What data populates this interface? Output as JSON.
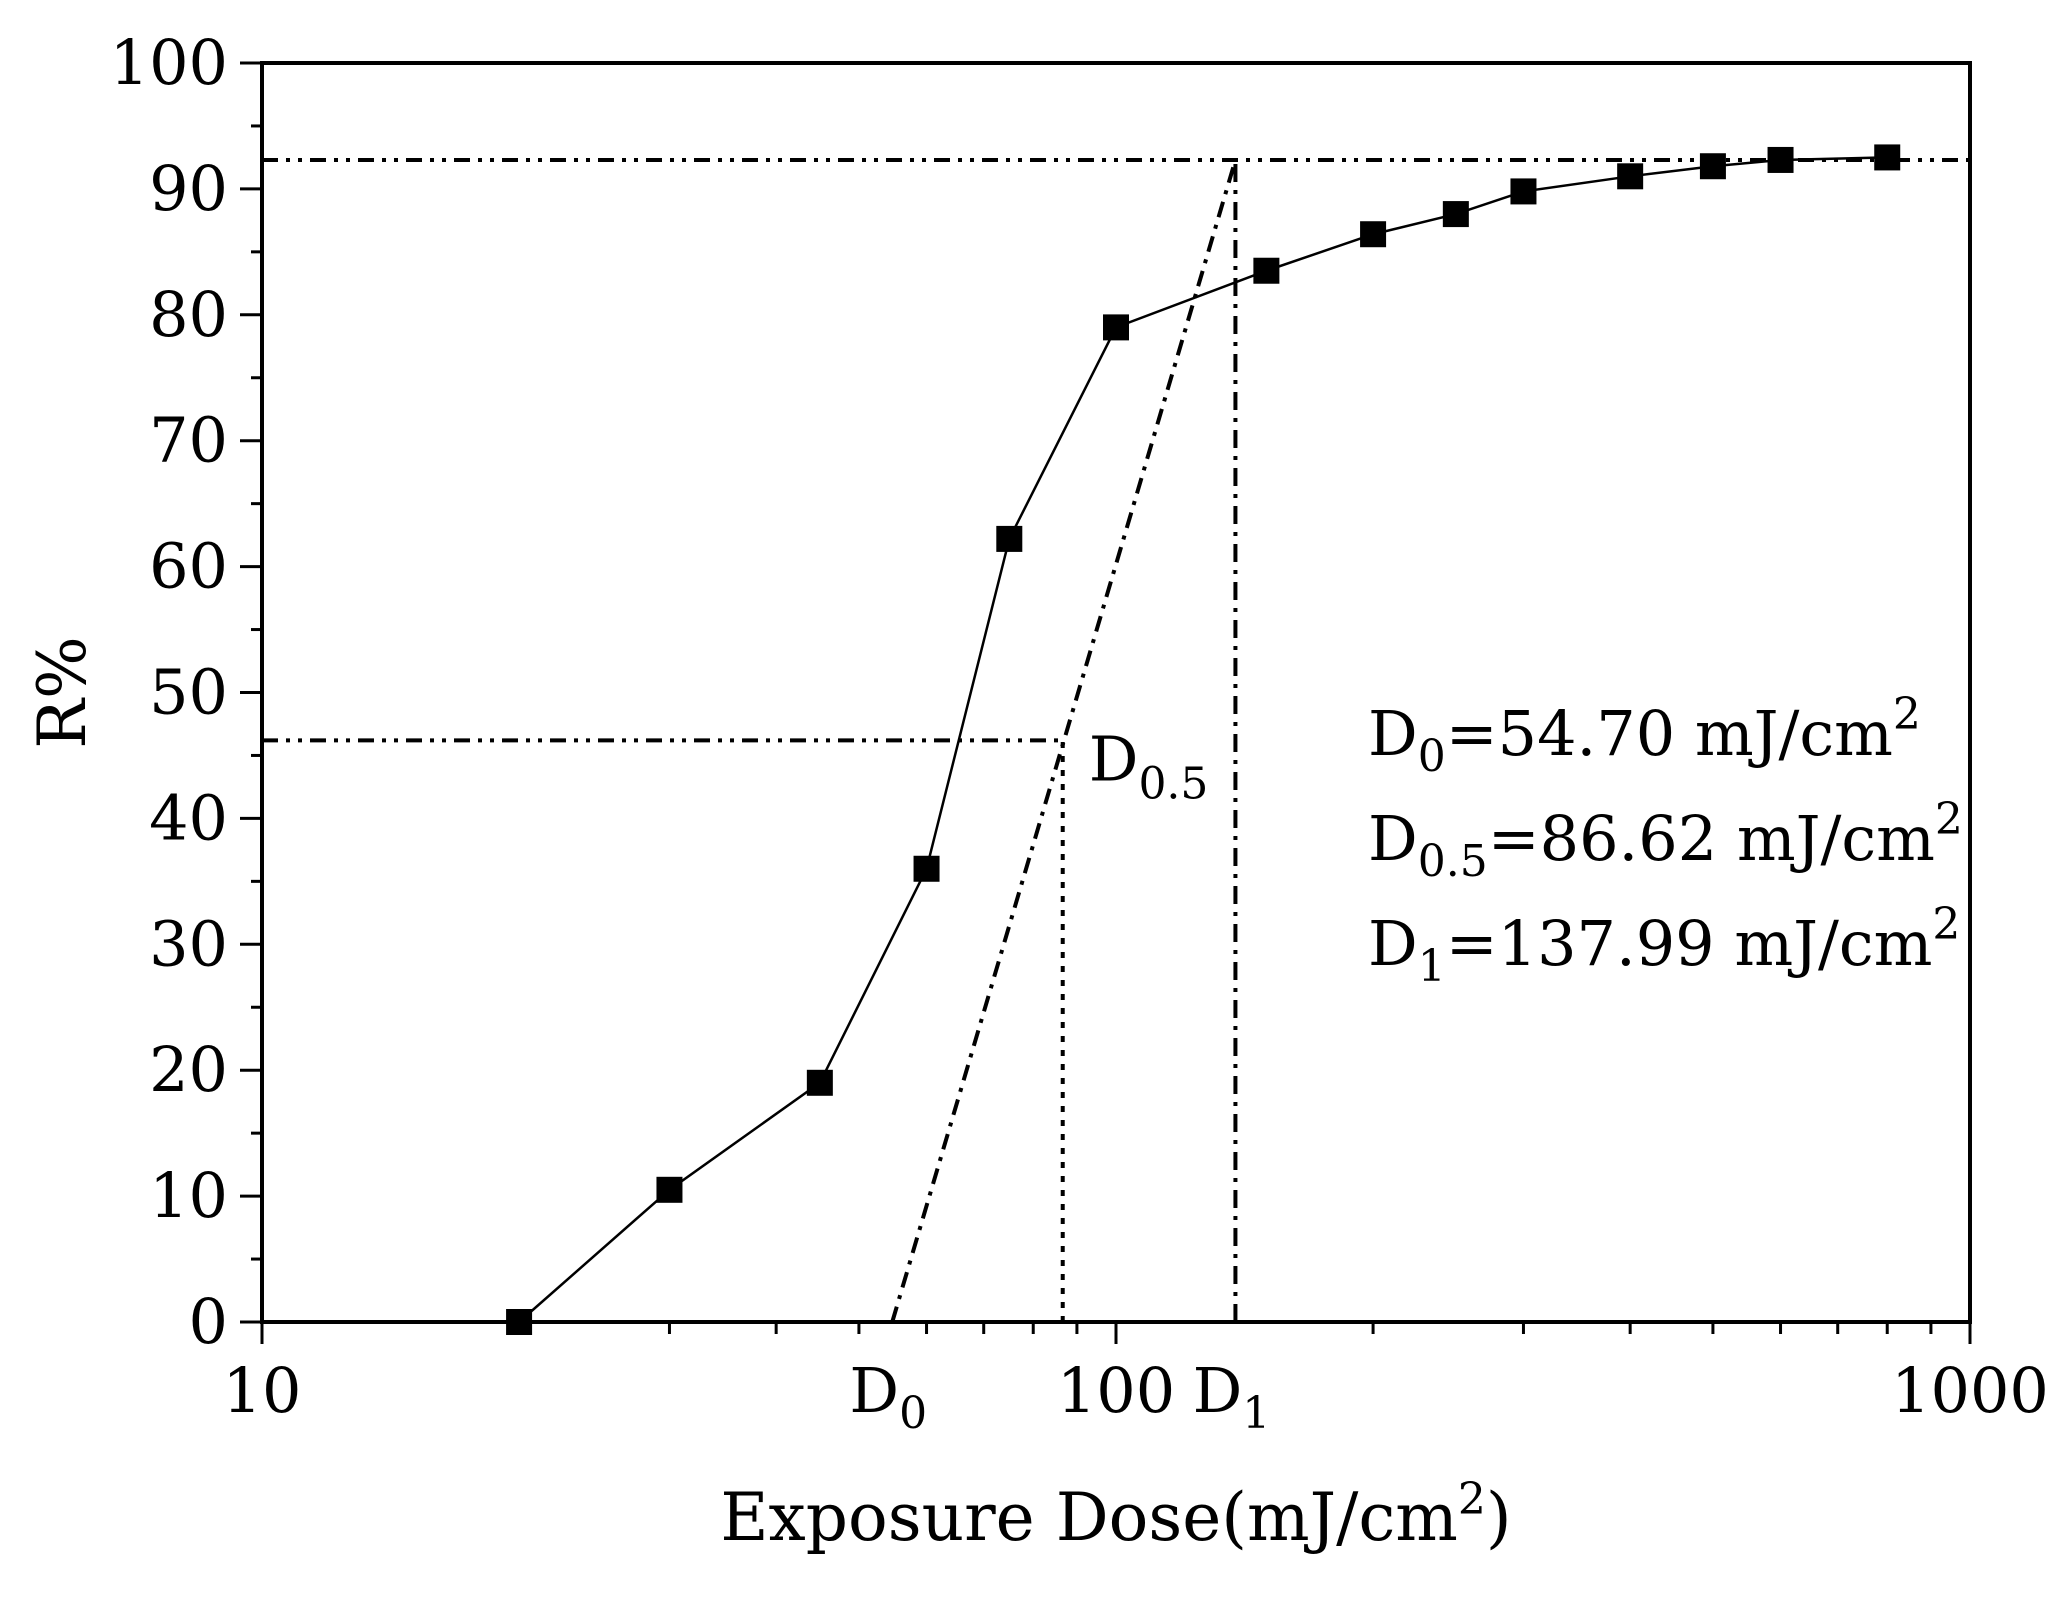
{
  "chart_data": {
    "type": "line",
    "x_scale": "log",
    "xlim": [
      10,
      1000
    ],
    "ylim": [
      0,
      100
    ],
    "x_ticks": [
      {
        "value": 10,
        "label": "10"
      },
      {
        "value": 100,
        "label": "100"
      },
      {
        "value": 1000,
        "label": "1000"
      }
    ],
    "y_ticks": [
      {
        "value": 0,
        "label": "0"
      },
      {
        "value": 10,
        "label": "10"
      },
      {
        "value": 20,
        "label": "20"
      },
      {
        "value": 30,
        "label": "30"
      },
      {
        "value": 40,
        "label": "40"
      },
      {
        "value": 50,
        "label": "50"
      },
      {
        "value": 60,
        "label": "60"
      },
      {
        "value": 70,
        "label": "70"
      },
      {
        "value": 80,
        "label": "80"
      },
      {
        "value": 90,
        "label": "90"
      },
      {
        "value": 100,
        "label": "100"
      }
    ],
    "xlabel": {
      "text": "Exposure Dose(mJ/cm",
      "sup": "2",
      "tail": ")"
    },
    "ylabel": "R%",
    "grid": false,
    "series": [
      {
        "marker": "square",
        "color": "#000000",
        "x": [
          20,
          30,
          45,
          60,
          75,
          100,
          150,
          200,
          250,
          300,
          400,
          500,
          600,
          800
        ],
        "y": [
          0,
          10.5,
          19,
          36,
          62.2,
          79,
          83.5,
          86.4,
          88,
          89.8,
          91,
          91.8,
          92.3,
          92.5
        ]
      }
    ],
    "reference_lines": {
      "tangent": {
        "x": [
          54.7,
          137.99
        ],
        "y": [
          0,
          92.3
        ]
      },
      "hline_top": {
        "y": 92.3,
        "x_from": 10,
        "x_to": 1000
      },
      "hline_mid": {
        "y": 46.2,
        "x_from": 10,
        "x_to": 86.62
      },
      "vline_d05": {
        "x": 86.62,
        "y_from": 0,
        "y_to": 46.2
      },
      "vline_d1": {
        "x": 137.99,
        "y_from": 0,
        "y_to": 92.3
      }
    },
    "axis_markers": [
      {
        "base": "D",
        "sub": "0",
        "x": 54.7
      },
      {
        "base": "D",
        "sub": "1",
        "x": 137.99
      }
    ],
    "point_annotation": {
      "base": "D",
      "sub": "0.5",
      "x": 86.62,
      "y": 46.2
    },
    "annotations": [
      {
        "base": "D",
        "sub": "0",
        "text": "=54.70 mJ/cm",
        "sup": "2"
      },
      {
        "base": "D",
        "sub": "0.5",
        "text": "=86.62 mJ/cm",
        "sup": "2"
      },
      {
        "base": "D",
        "sub": "1",
        "text": "=137.99 mJ/cm",
        "sup": "2"
      }
    ]
  }
}
